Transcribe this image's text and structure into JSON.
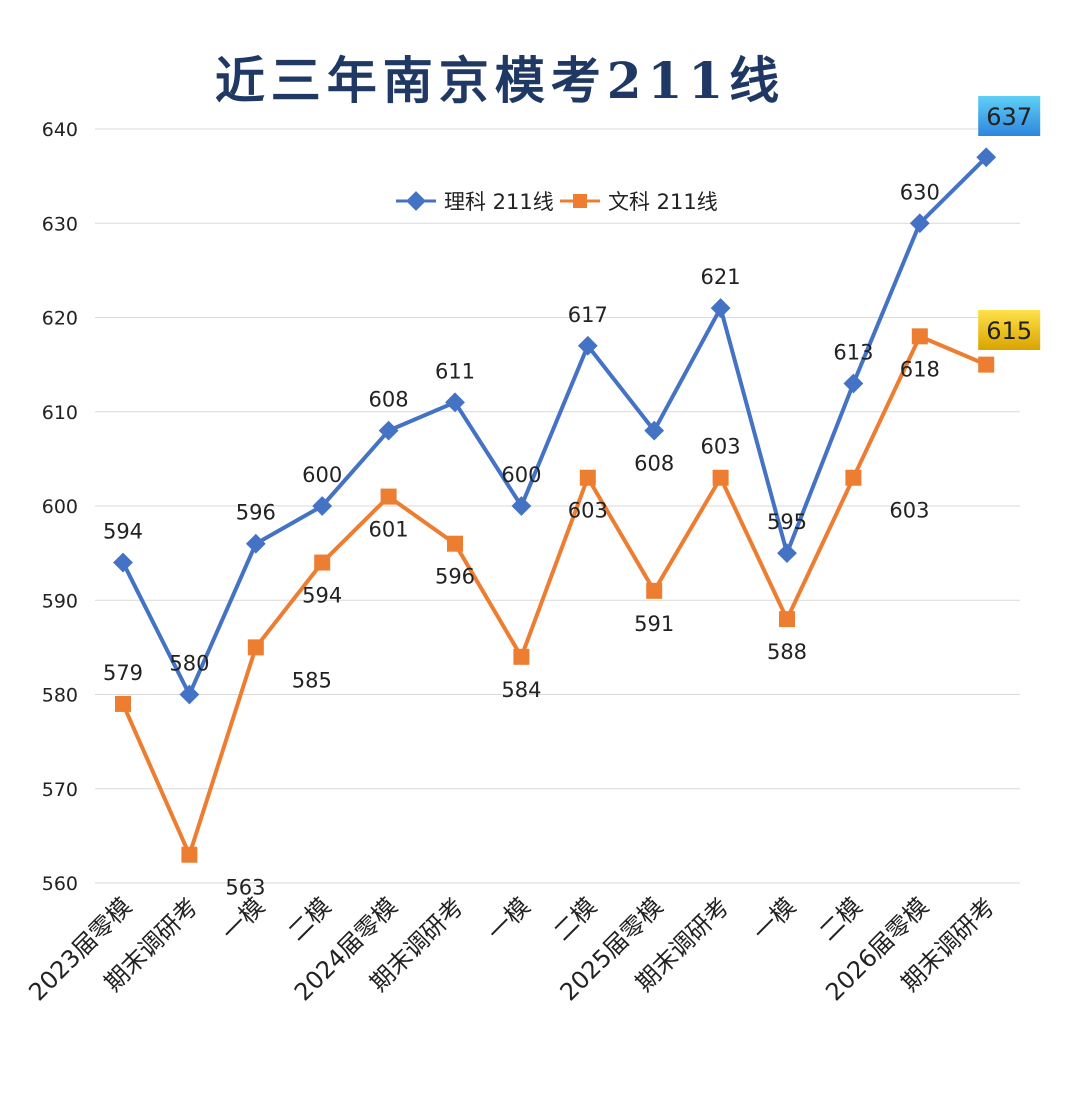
{
  "chart_data": {
    "type": "line",
    "title": "近三年南京模考211线",
    "xlabel": "",
    "ylabel": "",
    "ylim": [
      560,
      640
    ],
    "yticks": [
      560,
      570,
      580,
      590,
      600,
      610,
      620,
      630,
      640
    ],
    "grid": true,
    "legend_position": "top-center",
    "categories": [
      "2023届零模",
      "期末调研考",
      "一模",
      "二模",
      "2024届零模",
      "期末调研考",
      "一模",
      "二模",
      "2025届零模",
      "期末调研考",
      "一模",
      "二模",
      "2026届零模",
      "期末调研考"
    ],
    "series": [
      {
        "name": "理科 211线",
        "color": "#4472C4",
        "marker": "diamond",
        "values": [
          594,
          580,
          596,
          600,
          608,
          611,
          600,
          617,
          608,
          621,
          595,
          613,
          630,
          637
        ],
        "labels": [
          "594",
          "580",
          "596",
          "600",
          "608",
          "611",
          "600",
          "617",
          "608",
          "621",
          "595",
          "613",
          "630",
          "637"
        ]
      },
      {
        "name": "文科 211线",
        "color": "#ED7D31",
        "marker": "square",
        "values": [
          579,
          563,
          585,
          594,
          601,
          596,
          584,
          603,
          591,
          603,
          588,
          603,
          618,
          615
        ],
        "labels": [
          "579",
          "563",
          "585",
          "594",
          "601",
          "596",
          "584",
          "603",
          "591",
          "603",
          "588",
          "603",
          "618",
          "615"
        ]
      }
    ],
    "colors": {
      "title": "#1F3864",
      "grid": "#D9D9D9",
      "text": "#222222",
      "highlight_blue_top": "#5FD0F5",
      "highlight_blue_bottom": "#2E86DE",
      "highlight_gold_top": "#FFE14A",
      "highlight_gold_bottom": "#D9A400"
    }
  }
}
